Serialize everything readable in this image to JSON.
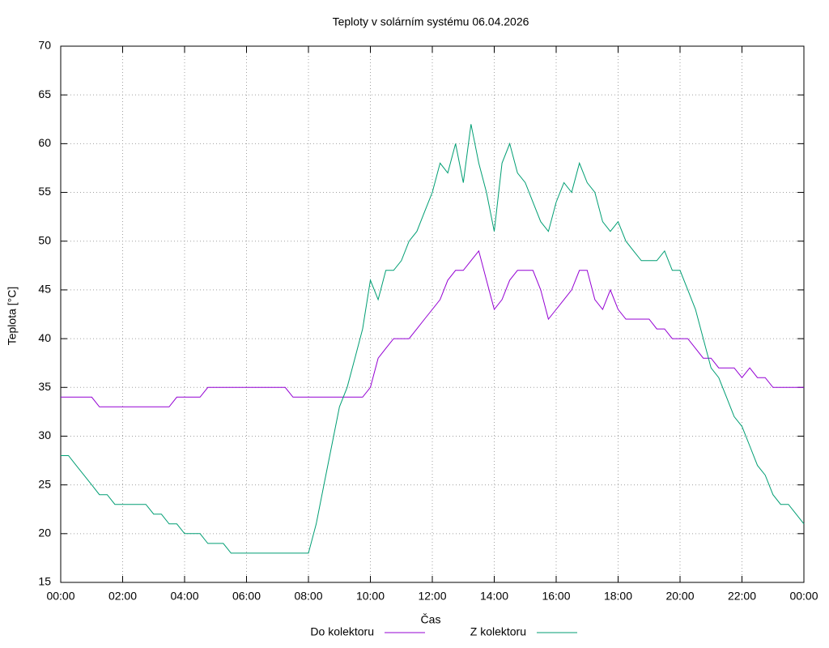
{
  "chart_data": {
    "type": "line",
    "title": "Teploty v solárním systému 06.04.2026",
    "x_label": "Čas",
    "y_label": "Teplota [°C]",
    "x": [
      0,
      0.25,
      0.5,
      0.75,
      1,
      1.25,
      1.5,
      1.75,
      2,
      2.25,
      2.5,
      2.75,
      3,
      3.25,
      3.5,
      3.75,
      4,
      4.25,
      4.5,
      4.75,
      5,
      5.25,
      5.5,
      5.75,
      6,
      6.25,
      6.5,
      6.75,
      7,
      7.25,
      7.5,
      7.75,
      8,
      8.25,
      8.5,
      8.75,
      9,
      9.25,
      9.5,
      9.75,
      10,
      10.25,
      10.5,
      10.75,
      11,
      11.25,
      11.5,
      11.75,
      12,
      12.25,
      12.5,
      12.75,
      13,
      13.25,
      13.5,
      13.75,
      14,
      14.25,
      14.5,
      14.75,
      15,
      15.25,
      15.5,
      15.75,
      16,
      16.25,
      16.5,
      16.75,
      17,
      17.25,
      17.5,
      17.75,
      18,
      18.25,
      18.5,
      18.75,
      19,
      19.25,
      19.5,
      19.75,
      20,
      20.25,
      20.5,
      20.75,
      21,
      21.25,
      21.5,
      21.75,
      22,
      22.25,
      22.5,
      22.75,
      23,
      23.25,
      23.5,
      23.75,
      24
    ],
    "series": [
      {
        "name": "Do kolektoru",
        "color": "#9400d3",
        "values": [
          34,
          34,
          34,
          34,
          34,
          33,
          33,
          33,
          33,
          33,
          33,
          33,
          33,
          33,
          33,
          34,
          34,
          34,
          34,
          35,
          35,
          35,
          35,
          35,
          35,
          35,
          35,
          35,
          35,
          35,
          34,
          34,
          34,
          34,
          34,
          34,
          34,
          34,
          34,
          34,
          35,
          38,
          39,
          40,
          40,
          40,
          41,
          42,
          43,
          44,
          46,
          47,
          47,
          48,
          49,
          46,
          43,
          44,
          46,
          47,
          47,
          47,
          45,
          42,
          43,
          44,
          45,
          47,
          47,
          44,
          43,
          45,
          43,
          42,
          42,
          42,
          42,
          41,
          41,
          40,
          40,
          40,
          39,
          38,
          38,
          37,
          37,
          37,
          36,
          37,
          36,
          36,
          35,
          35,
          35,
          35,
          35
        ]
      },
      {
        "name": "Z kolektoru",
        "color": "#009e73",
        "values": [
          28,
          28,
          27,
          26,
          25,
          24,
          24,
          23,
          23,
          23,
          23,
          23,
          22,
          22,
          21,
          21,
          20,
          20,
          20,
          19,
          19,
          19,
          18,
          18,
          18,
          18,
          18,
          18,
          18,
          18,
          18,
          18,
          18,
          21,
          25,
          29,
          33,
          35,
          38,
          41,
          46,
          44,
          47,
          47,
          48,
          50,
          51,
          53,
          55,
          58,
          57,
          60,
          56,
          62,
          58,
          55,
          51,
          58,
          60,
          57,
          56,
          54,
          52,
          51,
          54,
          56,
          55,
          58,
          56,
          55,
          52,
          51,
          52,
          50,
          49,
          48,
          48,
          48,
          49,
          47,
          47,
          45,
          43,
          40,
          37,
          36,
          34,
          32,
          31,
          29,
          27,
          26,
          24,
          23,
          23,
          22,
          21
        ]
      }
    ],
    "xlim": [
      0,
      24
    ],
    "xticks": [
      {
        "value": 0,
        "label": "00:00"
      },
      {
        "value": 2,
        "label": "02:00"
      },
      {
        "value": 4,
        "label": "04:00"
      },
      {
        "value": 6,
        "label": "06:00"
      },
      {
        "value": 8,
        "label": "08:00"
      },
      {
        "value": 10,
        "label": "10:00"
      },
      {
        "value": 12,
        "label": "12:00"
      },
      {
        "value": 14,
        "label": "14:00"
      },
      {
        "value": 16,
        "label": "16:00"
      },
      {
        "value": 18,
        "label": "18:00"
      },
      {
        "value": 20,
        "label": "20:00"
      },
      {
        "value": 22,
        "label": "22:00"
      },
      {
        "value": 24,
        "label": "00:00"
      }
    ],
    "ylim": [
      15,
      70
    ],
    "yticks": [
      15,
      20,
      25,
      30,
      35,
      40,
      45,
      50,
      55,
      60,
      65,
      70
    ],
    "grid": true,
    "legend": "bottom"
  }
}
